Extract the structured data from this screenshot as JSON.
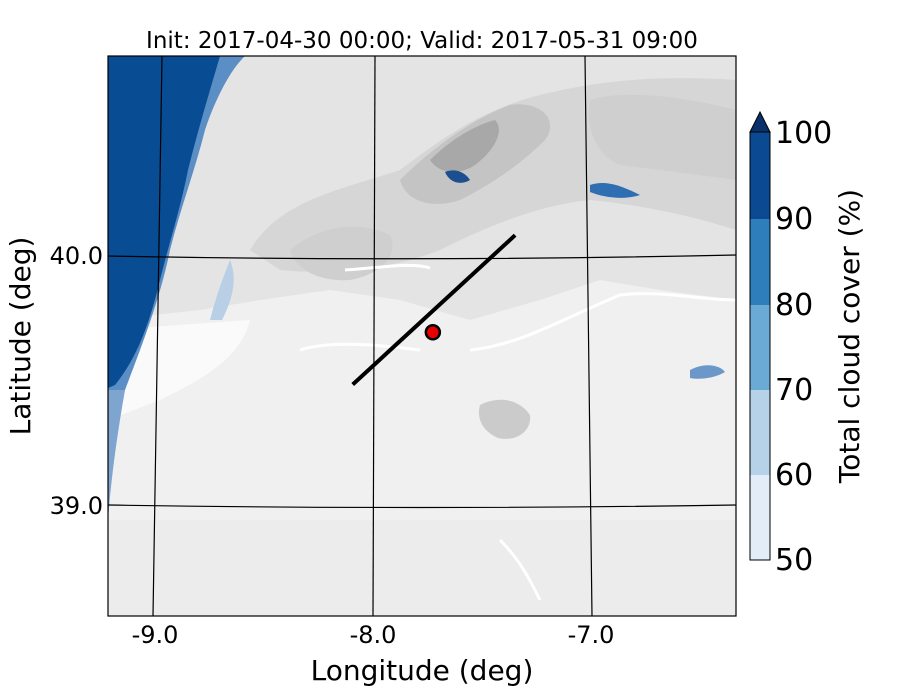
{
  "title": "Init: 2017-04-30 00:00; Valid: 2017-05-31 09:00",
  "xlabel": "Longitude (deg)",
  "ylabel": "Latitude (deg)",
  "x_ticks": [
    "-9.0",
    "-8.0",
    "-7.0"
  ],
  "y_ticks": [
    "40.0",
    "39.0"
  ],
  "colorbar": {
    "label": "Total cloud cover (%)",
    "ticks": [
      "100",
      "90",
      "80",
      "70",
      "60",
      "50"
    ],
    "levels": [
      50,
      60,
      70,
      80,
      90,
      100
    ],
    "extend": "max",
    "colors": [
      "#e3edf8",
      "#b6d2e9",
      "#6aaad5",
      "#2e7ebc",
      "#0b4a93",
      "#08306b"
    ]
  },
  "map": {
    "lon_range": [
      -9.25,
      -6.35
    ],
    "lat_range": [
      38.55,
      40.8
    ],
    "transect": {
      "start": {
        "lon": -8.12,
        "lat": 39.48
      },
      "end": {
        "lon": -7.37,
        "lat": 40.08
      }
    },
    "marker": {
      "lon": -7.75,
      "lat": 39.69,
      "color": "#e60000"
    },
    "terrain_colors": [
      "#f6f6f6",
      "#ebebeb",
      "#dddddd",
      "#cdcdcd",
      "#bdbdbd"
    ],
    "ocean_cloud_color": "#084c93"
  }
}
